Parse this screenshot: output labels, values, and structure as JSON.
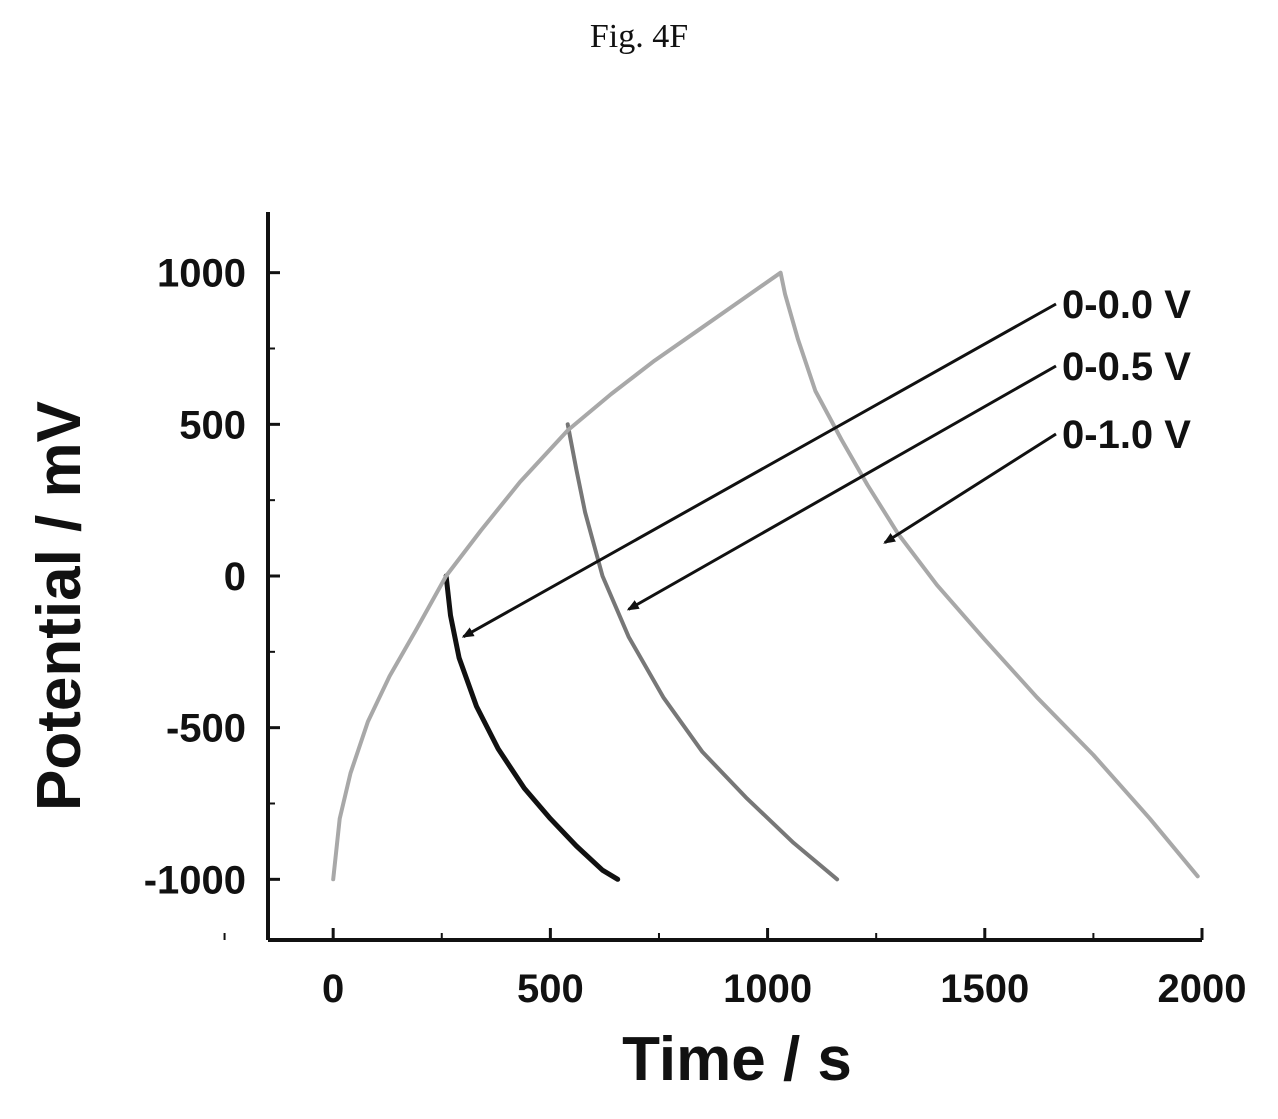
{
  "figure": {
    "title": "Fig. 4F"
  },
  "chart_data": {
    "type": "line",
    "xlabel": "Time / s",
    "ylabel": "Potential / mV",
    "xlim": [
      -150,
      2000
    ],
    "ylim": [
      -1200,
      1200
    ],
    "xticks": [
      0,
      500,
      1000,
      1500,
      2000
    ],
    "yticks": [
      -1000,
      -500,
      0,
      500,
      1000
    ],
    "xtick_labels": [
      "0",
      "500",
      "1000",
      "1500",
      "2000"
    ],
    "ytick_labels": [
      "-1000",
      "-500",
      "0",
      "500",
      "1000"
    ],
    "grid": false,
    "series": [
      {
        "name": "0-0.0 V",
        "color": "#111111",
        "x": [
          260,
          270,
          290,
          330,
          380,
          440,
          500,
          560,
          620,
          655
        ],
        "y": [
          0,
          -130,
          -270,
          -430,
          -570,
          -700,
          -800,
          -890,
          -970,
          -1000
        ]
      },
      {
        "name": "0-0.5 V",
        "color": "#777777",
        "x": [
          540,
          560,
          580,
          620,
          680,
          760,
          850,
          950,
          1060,
          1160
        ],
        "y": [
          500,
          350,
          210,
          0,
          -200,
          -400,
          -580,
          -730,
          -880,
          -1000
        ]
      },
      {
        "name": "0-1.0 V",
        "color": "#a8a8a8",
        "x": [
          0,
          15,
          40,
          80,
          130,
          190,
          260,
          340,
          430,
          540,
          640,
          740,
          840,
          940,
          1030,
          1040,
          1070,
          1110,
          1170,
          1230,
          1300,
          1390,
          1500,
          1620,
          1750,
          1880,
          1990
        ],
        "y": [
          -1000,
          -800,
          -650,
          -480,
          -330,
          -180,
          0,
          150,
          310,
          480,
          600,
          710,
          810,
          910,
          1000,
          930,
          780,
          610,
          450,
          300,
          140,
          -30,
          -210,
          -400,
          -590,
          -800,
          -990
        ]
      }
    ],
    "annotations": [
      {
        "label": "0-0.0 V",
        "arrow_to": [
          300,
          -200
        ]
      },
      {
        "label": "0-0.5 V",
        "arrow_to": [
          680,
          -110
        ]
      },
      {
        "label": "0-1.0 V",
        "arrow_to": [
          1270,
          110
        ]
      }
    ]
  }
}
